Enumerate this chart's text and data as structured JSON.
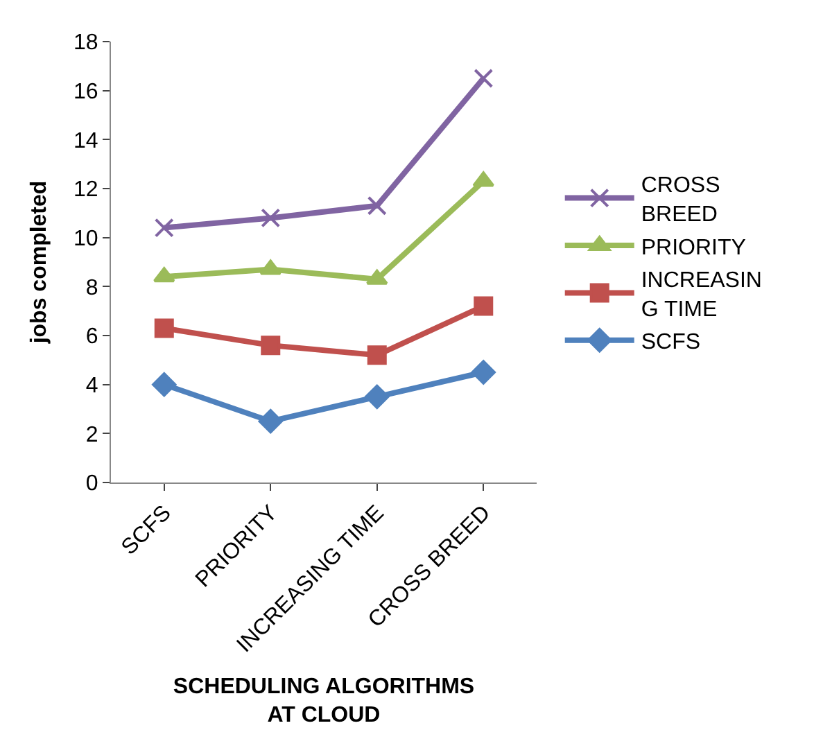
{
  "chart_data": {
    "type": "line",
    "xlabel": "SCHEDULING ALGORITHMS AT CLOUD",
    "ylabel": "jobs completed",
    "categories": [
      "SCFS",
      "PRIORITY",
      "INCREASING TIME",
      "CROSS BREED"
    ],
    "ylim": [
      0,
      18
    ],
    "yticks": [
      0,
      2,
      4,
      6,
      8,
      10,
      12,
      14,
      16,
      18
    ],
    "legend": "right",
    "line_style": "solid",
    "series": [
      {
        "name": "CROSS BREED",
        "color": "#8064a2",
        "marker": "cross",
        "values": [
          10.4,
          10.8,
          11.3,
          16.5
        ]
      },
      {
        "name": "PRIORITY",
        "color": "#9bbb59",
        "marker": "triangle",
        "values": [
          8.4,
          8.7,
          8.3,
          12.3
        ]
      },
      {
        "name": "INCREASING TIME",
        "color": "#c0504d",
        "marker": "square",
        "values": [
          6.3,
          5.6,
          5.2,
          7.2
        ]
      },
      {
        "name": "SCFS",
        "color": "#4f81bd",
        "marker": "diamond",
        "values": [
          4.0,
          2.5,
          3.5,
          4.5
        ]
      }
    ]
  }
}
